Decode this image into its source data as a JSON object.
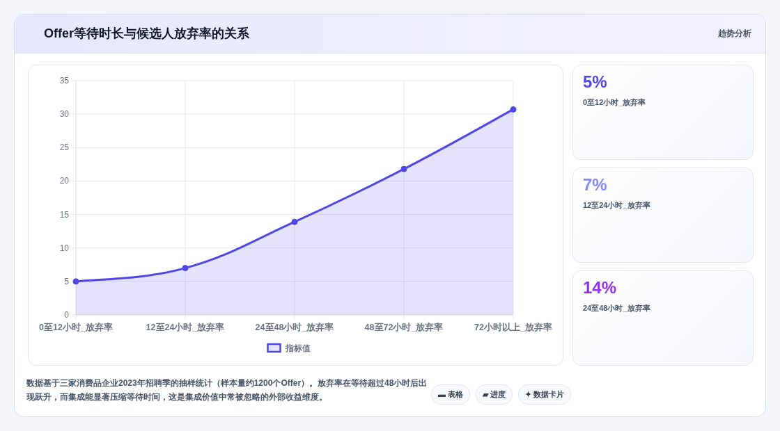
{
  "chart_data": [
    {
      "type": "area",
      "title": "Offer等待时长与候选人放弃率的关系",
      "categories": [
        "0至12小时_放弃率",
        "12至24小时_放弃率",
        "24至48小时_放弃率",
        "48至72小时_放弃率",
        "72小时以上_放弃率"
      ],
      "series": [
        {
          "name": "指标值",
          "color": "#4f46e5",
          "values": [
            5,
            7,
            13.9,
            21.8,
            30.7
          ]
        }
      ],
      "ylim": [
        0,
        35
      ],
      "yticks": [
        0,
        5,
        10,
        15,
        20,
        25,
        30,
        35
      ],
      "grid": true,
      "legend": "bottom",
      "marker": "circle",
      "annotations": [
        "趋势分析",
        "数据基于三家消费品企业2023年招聘季的抽样统计（样本量约1200个Offer）。放弃率在等待超过48小时后出现跃升，而集成能显著压缩等待时间，这是集成价值中常被忽略的外部收益维度。",
        "▬ 表格",
        "▰ 进度",
        "✦ 数据卡片"
      ]
    },
    {
      "type": "other",
      "annotations": [
        "5%",
        "0至12小时_放弃率",
        "7%",
        "12至24小时_放弃率",
        "14%",
        "24至48小时_放弃率"
      ]
    }
  ]
}
